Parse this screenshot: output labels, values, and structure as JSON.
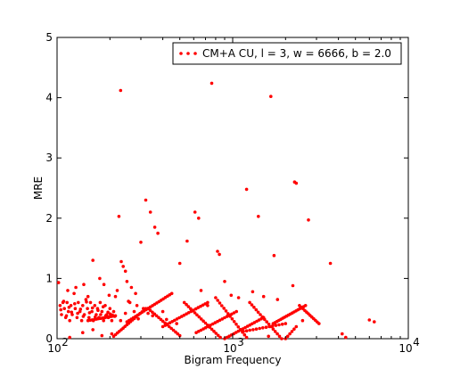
{
  "chart_data": {
    "type": "scatter",
    "title": "",
    "xlabel": "Bigram Frequency",
    "ylabel": "MRE",
    "xscale": "log",
    "xlim": [
      100,
      10000
    ],
    "ylim": [
      0,
      5
    ],
    "grid": false,
    "legend_position": "top-right",
    "x_ticks": [
      {
        "value": 100,
        "base": "10",
        "exp": "2"
      },
      {
        "value": 1000,
        "base": "10",
        "exp": "3"
      },
      {
        "value": 10000,
        "base": "10",
        "exp": "4"
      }
    ],
    "y_ticks": [
      {
        "value": 0,
        "label": "0"
      },
      {
        "value": 1,
        "label": "1"
      },
      {
        "value": 2,
        "label": "2"
      },
      {
        "value": 3,
        "label": "3"
      },
      {
        "value": 4,
        "label": "4"
      },
      {
        "value": 5,
        "label": "5"
      }
    ],
    "series": [
      {
        "name": "CM+A CU, l = 3, w = 6666, b = 2.0",
        "color": "#ff0000",
        "marker": "circle",
        "points": [
          [
            102,
            0.93
          ],
          [
            104,
            0.55
          ],
          [
            106,
            0.4
          ],
          [
            108,
            0.6
          ],
          [
            110,
            0.5
          ],
          [
            112,
            0.35
          ],
          [
            114,
            0.6
          ],
          [
            116,
            0.45
          ],
          [
            118,
            0.3
          ],
          [
            120,
            0.55
          ],
          [
            122,
            0.4
          ],
          [
            125,
            0.75
          ],
          [
            127,
            0.5
          ],
          [
            130,
            0.35
          ],
          [
            132,
            0.6
          ],
          [
            135,
            0.45
          ],
          [
            138,
            0.3
          ],
          [
            140,
            0.55
          ],
          [
            143,
            0.4
          ],
          [
            146,
            0.65
          ],
          [
            149,
            0.5
          ],
          [
            152,
            0.35
          ],
          [
            155,
            0.6
          ],
          [
            158,
            0.45
          ],
          [
            161,
            0.3
          ],
          [
            164,
            0.55
          ],
          [
            167,
            0.4
          ],
          [
            170,
            0.5
          ],
          [
            173,
            0.35
          ],
          [
            176,
            0.6
          ],
          [
            180,
            0.45
          ],
          [
            184,
            0.3
          ],
          [
            188,
            0.55
          ],
          [
            192,
            0.4
          ],
          [
            196,
            0.35
          ],
          [
            200,
            0.5
          ],
          [
            205,
            0.3
          ],
          [
            210,
            0.45
          ],
          [
            105,
            0.48
          ],
          [
            109,
            0.62
          ],
          [
            113,
            0.38
          ],
          [
            117,
            0.52
          ],
          [
            121,
            0.44
          ],
          [
            126,
            0.58
          ],
          [
            131,
            0.42
          ],
          [
            136,
            0.49
          ],
          [
            141,
            0.37
          ],
          [
            147,
            0.61
          ],
          [
            153,
            0.43
          ],
          [
            159,
            0.51
          ],
          [
            165,
            0.36
          ],
          [
            171,
            0.47
          ],
          [
            177,
            0.4
          ],
          [
            183,
            0.53
          ],
          [
            189,
            0.38
          ],
          [
            195,
            0.44
          ],
          [
            201,
            0.41
          ],
          [
            207,
            0.39
          ],
          [
            213,
            0.37
          ],
          [
            115,
            0.8
          ],
          [
            128,
            0.85
          ],
          [
            142,
            0.9
          ],
          [
            150,
            0.7
          ],
          [
            160,
            1.3
          ],
          [
            175,
            1.0
          ],
          [
            185,
            0.9
          ],
          [
            198,
            0.72
          ],
          [
            215,
            0.7
          ],
          [
            220,
            0.8
          ],
          [
            118,
            0.02
          ],
          [
            140,
            0.1
          ],
          [
            160,
            0.15
          ],
          [
            180,
            0.05
          ],
          [
            205,
            0.08
          ],
          [
            230,
            4.12
          ],
          [
            225,
            2.03
          ],
          [
            232,
            1.28
          ],
          [
            238,
            1.2
          ],
          [
            245,
            1.12
          ],
          [
            250,
            0.95
          ],
          [
            255,
            0.62
          ],
          [
            265,
            0.85
          ],
          [
            280,
            0.75
          ],
          [
            285,
            0.55
          ],
          [
            300,
            1.6
          ],
          [
            320,
            2.3
          ],
          [
            340,
            2.1
          ],
          [
            360,
            1.85
          ],
          [
            375,
            1.75
          ],
          [
            400,
            0.45
          ],
          [
            420,
            0.32
          ],
          [
            230,
            0.3
          ],
          [
            245,
            0.42
          ],
          [
            260,
            0.6
          ],
          [
            275,
            0.45
          ],
          [
            290,
            0.33
          ],
          [
            310,
            0.5
          ],
          [
            330,
            0.42
          ],
          [
            350,
            0.38
          ],
          [
            480,
            0.25
          ],
          [
            500,
            1.25
          ],
          [
            550,
            1.62
          ],
          [
            610,
            2.1
          ],
          [
            640,
            2.0
          ],
          [
            660,
            0.8
          ],
          [
            720,
            0.55
          ],
          [
            760,
            4.24
          ],
          [
            820,
            1.45
          ],
          [
            840,
            1.4
          ],
          [
            900,
            0.95
          ],
          [
            980,
            0.72
          ],
          [
            1080,
            0.68
          ],
          [
            1200,
            2.48
          ],
          [
            1300,
            0.78
          ],
          [
            1400,
            2.03
          ],
          [
            1500,
            0.7
          ],
          [
            1650,
            4.02
          ],
          [
            1720,
            1.38
          ],
          [
            1800,
            0.65
          ],
          [
            2200,
            0.88
          ],
          [
            2250,
            2.6
          ],
          [
            2300,
            2.58
          ],
          [
            2500,
            0.3
          ],
          [
            2700,
            1.97
          ],
          [
            3600,
            1.25
          ],
          [
            4200,
            0.08
          ],
          [
            4400,
            0.02
          ],
          [
            6000,
            0.31
          ],
          [
            6400,
            0.28
          ],
          [
            1600,
            0.04
          ]
        ],
        "curves": [
          {
            "x_from": 150,
            "x_to": 215,
            "y_from": 0.3,
            "y_to": 0.38,
            "count": 14
          },
          {
            "x_from": 210,
            "x_to": 320,
            "y_from": 0.04,
            "y_to": 0.5,
            "count": 18
          },
          {
            "x_from": 250,
            "x_to": 450,
            "y_from": 0.28,
            "y_to": 0.75,
            "count": 22
          },
          {
            "x_from": 330,
            "x_to": 500,
            "y_from": 0.5,
            "y_to": 0.05,
            "count": 16
          },
          {
            "x_from": 400,
            "x_to": 720,
            "y_from": 0.2,
            "y_to": 0.6,
            "count": 20
          },
          {
            "x_from": 530,
            "x_to": 850,
            "y_from": 0.6,
            "y_to": 0.02,
            "count": 18
          },
          {
            "x_from": 620,
            "x_to": 1050,
            "y_from": 0.1,
            "y_to": 0.45,
            "count": 18
          },
          {
            "x_from": 800,
            "x_to": 1200,
            "y_from": 0.68,
            "y_to": 0.02,
            "count": 16
          },
          {
            "x_from": 900,
            "x_to": 1500,
            "y_from": 0.0,
            "y_to": 0.35,
            "count": 18
          },
          {
            "x_from": 1250,
            "x_to": 1900,
            "y_from": 0.6,
            "y_to": 0.0,
            "count": 16
          },
          {
            "x_from": 1150,
            "x_to": 2000,
            "y_from": 0.12,
            "y_to": 0.25,
            "count": 14
          },
          {
            "x_from": 1700,
            "x_to": 2600,
            "y_from": 0.25,
            "y_to": 0.55,
            "count": 18
          },
          {
            "x_from": 2400,
            "x_to": 3100,
            "y_from": 0.55,
            "y_to": 0.25,
            "count": 12
          },
          {
            "x_from": 2000,
            "x_to": 2300,
            "y_from": 0.0,
            "y_to": 0.2,
            "count": 6
          }
        ]
      }
    ]
  }
}
